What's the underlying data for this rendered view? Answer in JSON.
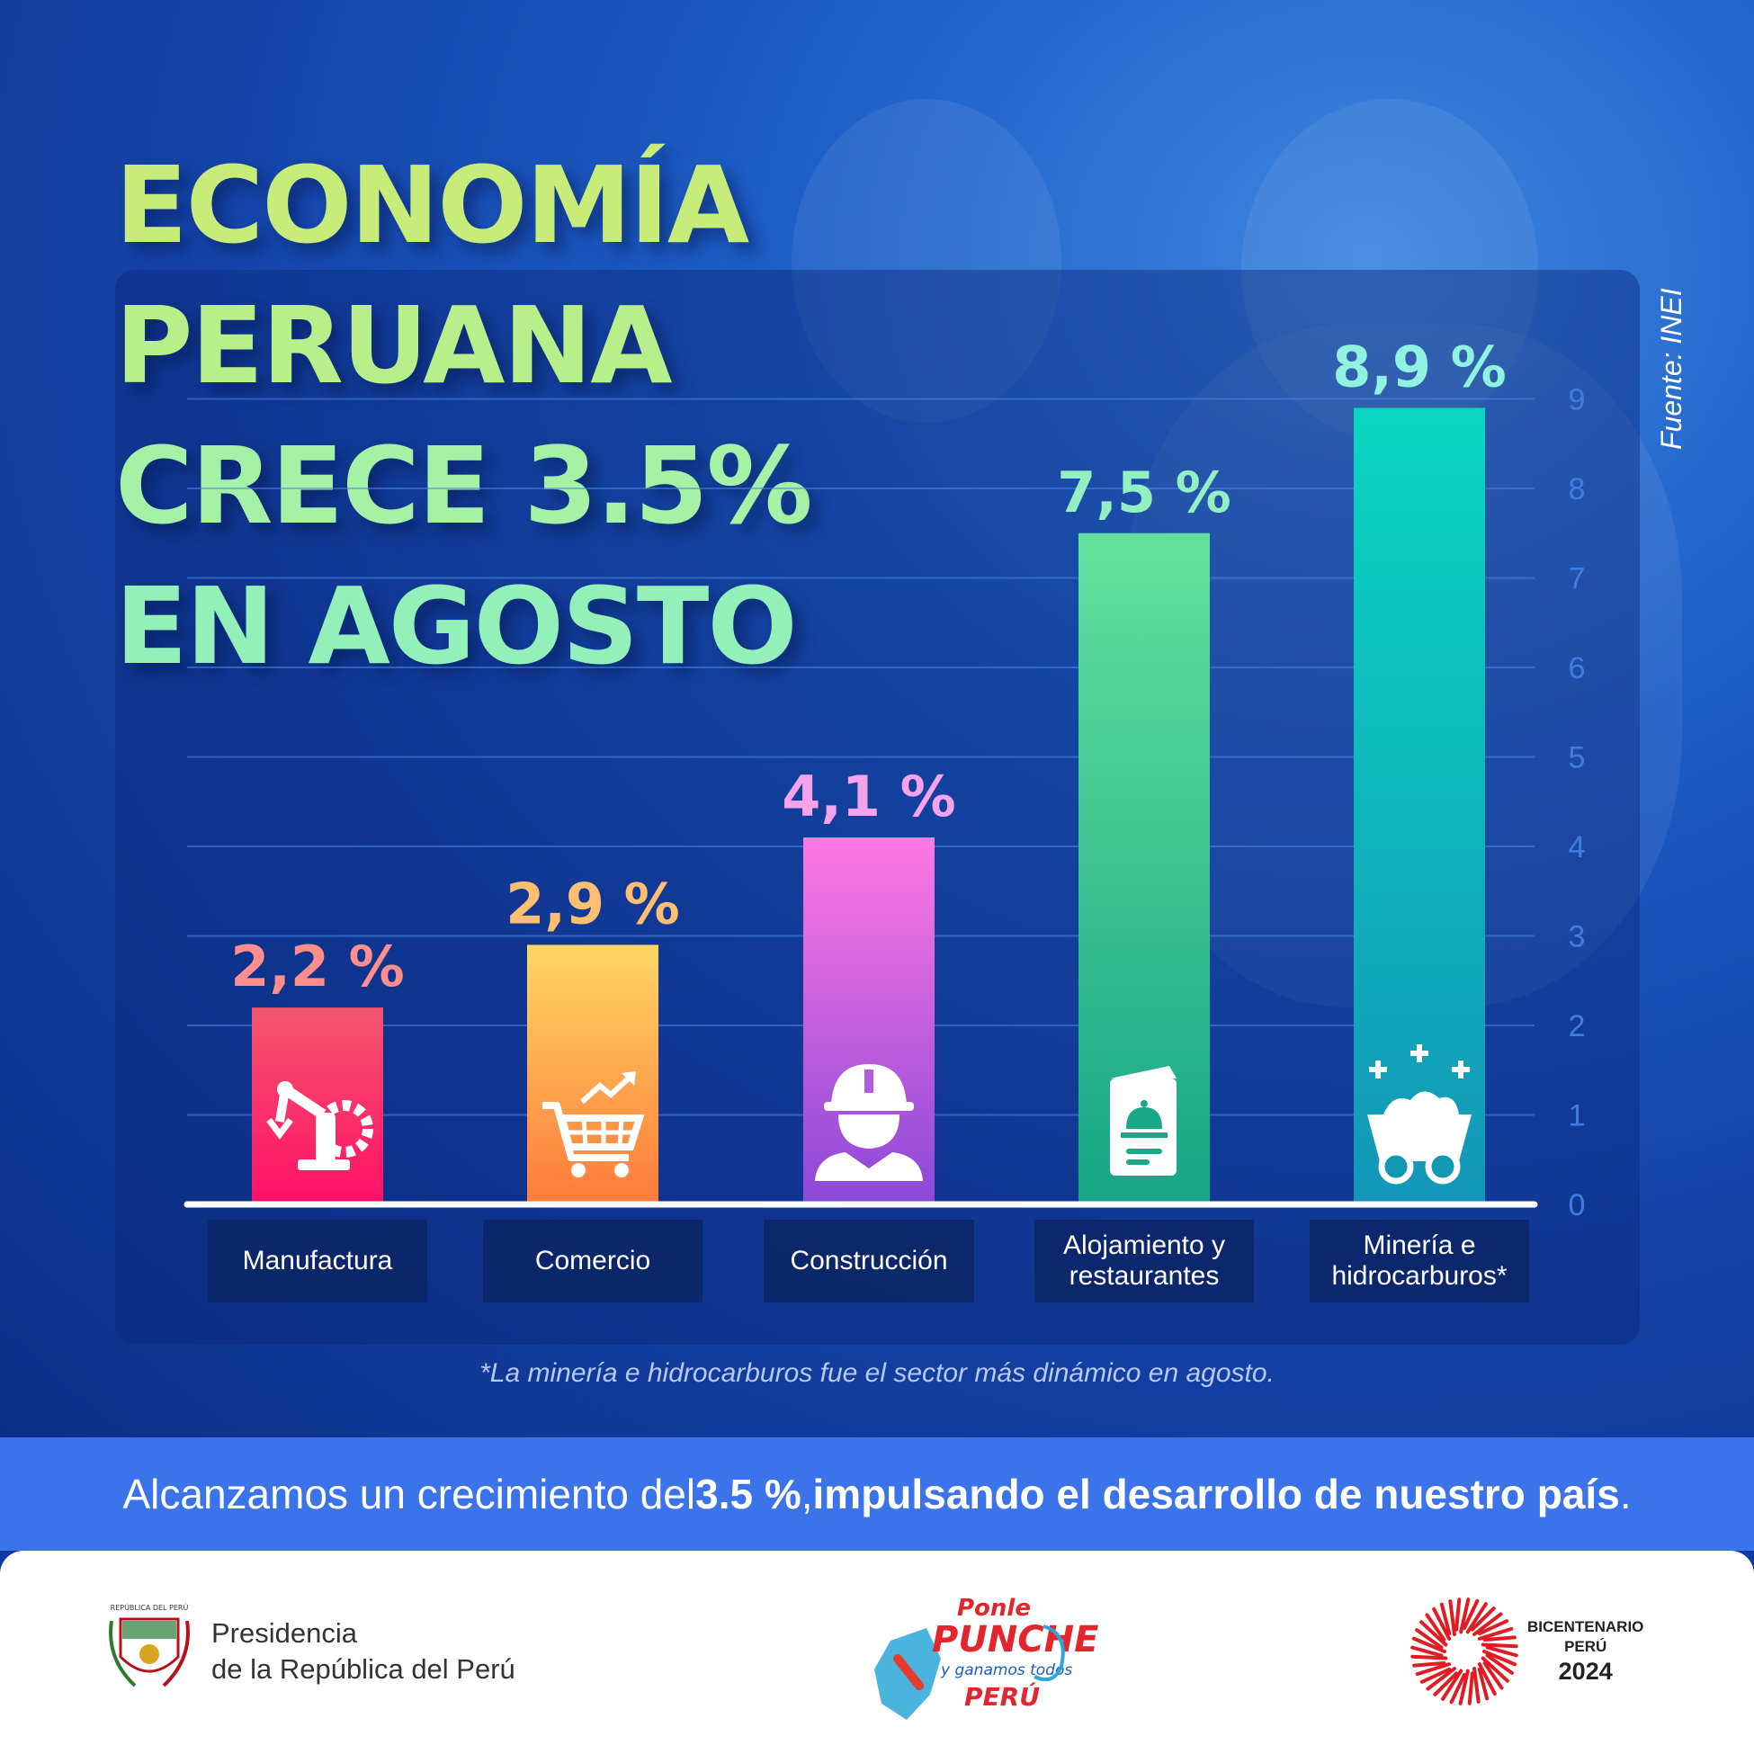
{
  "title_lines": [
    "ECONOMÍA",
    "PERUANA",
    "CRECE 3.5%",
    "EN AGOSTO"
  ],
  "source": "Fuente: INEI",
  "footnote": "*La minería e hidrocarburos fue el sector más dinámico en agosto.",
  "banner": {
    "prefix": "Alcanzamos un crecimiento del ",
    "highlight": "3.5 %",
    "middle": ", ",
    "bold_tail": "impulsando el desarrollo de nuestro país",
    "suffix": "."
  },
  "footer": {
    "gov_line1": "Presidencia",
    "gov_line2": "de la República del Perú",
    "seal_text": "REPÚBLICA DEL PERÚ",
    "campaign_line1": "Ponle",
    "campaign_line2": "PUNCHE",
    "campaign_line3": "y ganamos todos",
    "campaign_line4": "PERÚ",
    "bicentenario_line1": "BICENTENARIO",
    "bicentenario_line2": "PERÚ",
    "bicentenario_line3": "2024"
  },
  "chart_data": {
    "type": "bar",
    "categories": [
      "Manufactura",
      "Comercio",
      "Construcción",
      "Alojamiento y\nrestaurantes",
      "Minería e\nhidrocarburos*"
    ],
    "values": [
      2.2,
      2.9,
      4.1,
      7.5,
      8.9
    ],
    "value_labels": [
      "2,2 %",
      "2,9 %",
      "4,1 %",
      "7,5 %",
      "8,9 %"
    ],
    "y_ticks": [
      "0",
      "1",
      "2",
      "3",
      "4",
      "5",
      "6",
      "7",
      "8",
      "9"
    ],
    "ylim": [
      0,
      9
    ],
    "grid": true,
    "icons": [
      "robot-arm-gear-icon",
      "shopping-cart-icon",
      "worker-helmet-icon",
      "menu-cloche-icon",
      "mine-cart-icon"
    ],
    "bar_colors": [
      [
        "#f4566f",
        "#ff1066"
      ],
      [
        "#ffd766",
        "#ff7a3a"
      ],
      [
        "#ff78e2",
        "#8a48d8"
      ],
      [
        "#63e19e",
        "#16a585"
      ],
      [
        "#0ad6c0",
        "#1396b8"
      ]
    ],
    "label_colors": [
      "#ff8e8c",
      "#ffbf70",
      "#f6a3ec",
      "#93f0c0",
      "#8ff3df"
    ]
  }
}
